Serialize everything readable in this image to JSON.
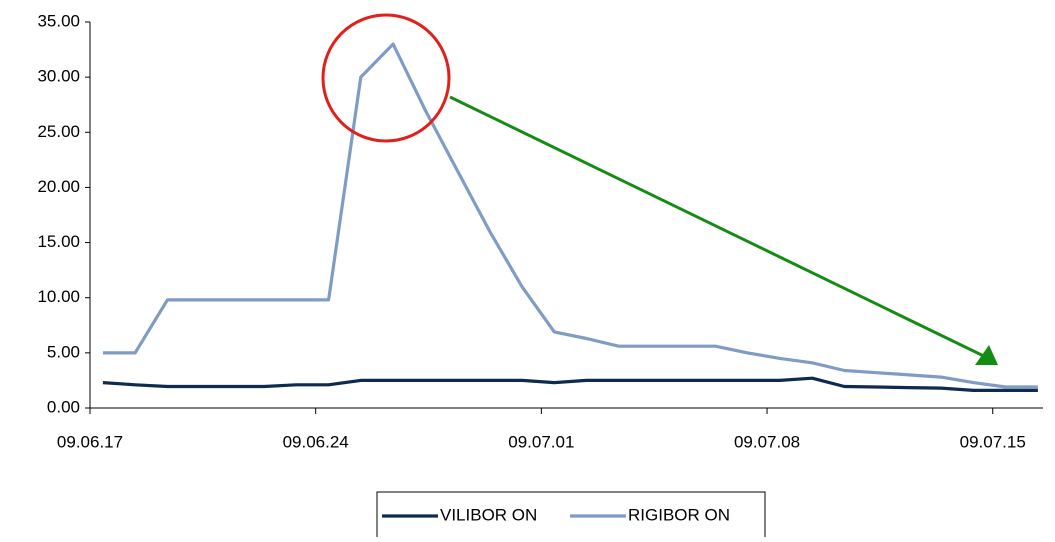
{
  "chart_data": {
    "type": "line",
    "x": [
      "09.06.17",
      "09.06.18",
      "09.06.19",
      "09.06.20",
      "09.06.21",
      "09.06.22",
      "09.06.23",
      "09.06.24",
      "09.06.25",
      "09.06.26",
      "09.06.27",
      "09.06.28",
      "09.06.29",
      "09.06.30",
      "09.07.01",
      "09.07.02",
      "09.07.03",
      "09.07.04",
      "09.07.05",
      "09.07.06",
      "09.07.07",
      "09.07.08",
      "09.07.09",
      "09.07.10",
      "09.07.11",
      "09.07.12",
      "09.07.13",
      "09.07.14",
      "09.07.15",
      "09.07.16"
    ],
    "series": [
      {
        "name": "VILIBOR ON",
        "color": "#0d2a4f",
        "values": [
          2.3,
          2.1,
          1.95,
          1.95,
          1.95,
          1.95,
          2.1,
          2.1,
          2.5,
          2.5,
          2.5,
          2.5,
          2.5,
          2.5,
          2.3,
          2.5,
          2.5,
          2.5,
          2.5,
          2.5,
          2.5,
          2.5,
          2.7,
          1.95,
          1.9,
          1.85,
          1.8,
          1.6,
          1.6,
          1.6
        ]
      },
      {
        "name": "RIGIBOR ON",
        "color": "#7f9cc4",
        "values": [
          5.0,
          5.0,
          9.8,
          9.8,
          9.8,
          9.8,
          9.8,
          9.8,
          30.0,
          33.0,
          27.0,
          21.5,
          16.0,
          11.0,
          6.9,
          6.3,
          5.6,
          5.6,
          5.6,
          5.6,
          5.0,
          4.5,
          4.1,
          3.4,
          3.2,
          3.0,
          2.8,
          2.3,
          1.9,
          1.9
        ]
      }
    ],
    "ylim": [
      0,
      35
    ],
    "yticks": [
      {
        "value": 0,
        "label": "0.00"
      },
      {
        "value": 5,
        "label": "5.00"
      },
      {
        "value": 10,
        "label": "10.00"
      },
      {
        "value": 15,
        "label": "15.00"
      },
      {
        "value": 20,
        "label": "20.00"
      },
      {
        "value": 25,
        "label": "25.00"
      },
      {
        "value": 30,
        "label": "30.00"
      },
      {
        "value": 35,
        "label": "35.00"
      }
    ],
    "xticks": [
      "09.06.17",
      "09.06.24",
      "09.07.01",
      "09.07.08",
      "09.07.15"
    ],
    "legend": "bottom"
  }
}
